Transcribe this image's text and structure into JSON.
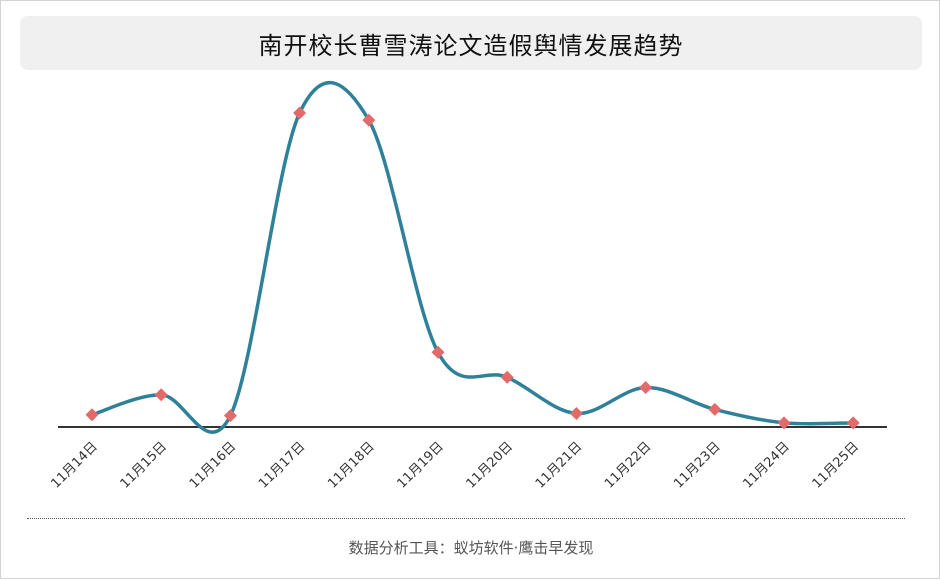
{
  "title": "南开校长曹雪涛论文造假舆情发展趋势",
  "footer": "数据分析工具：蚁坊软件·鹰击早发现",
  "colors": {
    "line": "#2e8198",
    "marker": "#e36a6b",
    "axis": "#333333",
    "title_bg": "#f0f0f0"
  },
  "chart_data": {
    "type": "line",
    "title": "南开校长曹雪涛论文造假舆情发展趋势",
    "categories": [
      "11月14日",
      "11月15日",
      "11月16日",
      "11月17日",
      "11月18日",
      "11月19日",
      "11月20日",
      "11月21日",
      "11月22日",
      "11月23日",
      "11月24日",
      "11月25日"
    ],
    "series": [
      {
        "values": [
          3.3,
          9.7,
          3.0,
          100,
          97.7,
          23.3,
          15.3,
          3.7,
          12.0,
          5.0,
          0.7,
          0.7
        ]
      }
    ],
    "ylim": [
      0,
      100
    ],
    "yaxis_visible": false,
    "grid": false,
    "smooth": true,
    "marker": "diamond",
    "legend": "none"
  }
}
